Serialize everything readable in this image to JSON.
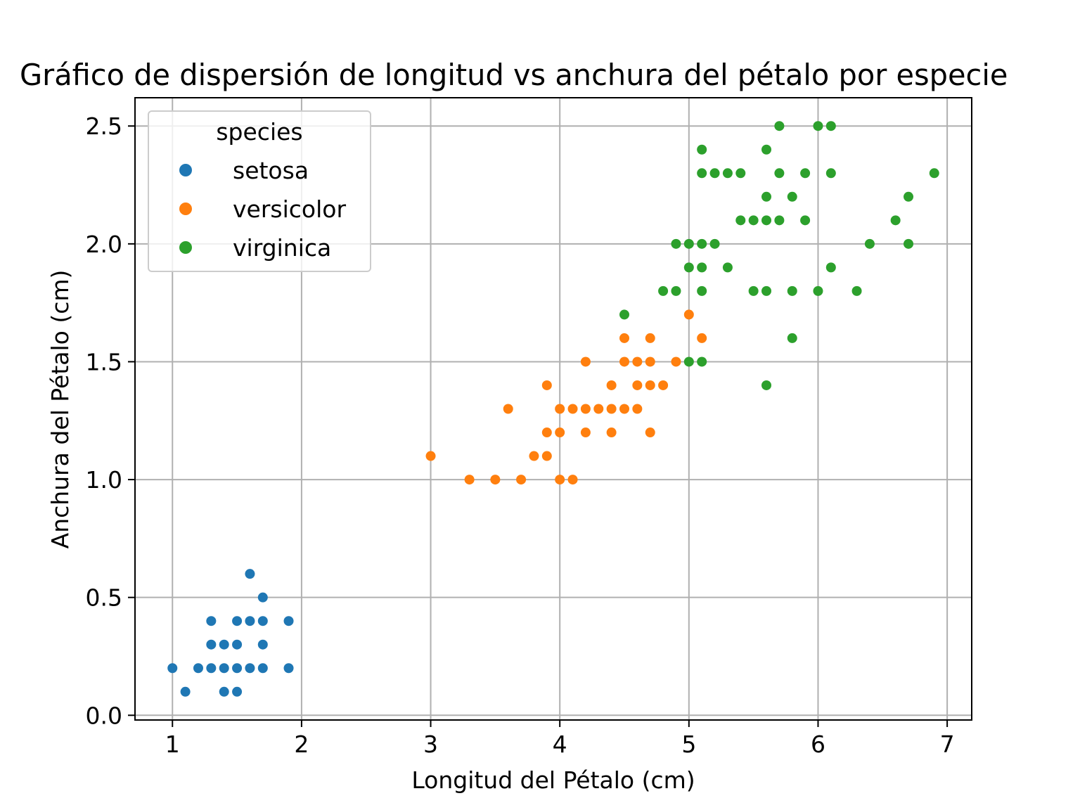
{
  "chart_data": {
    "type": "scatter",
    "title": "Gráfico de dispersión de longitud vs anchura del pétalo por especie",
    "xlabel": "Longitud del Pétalo (cm)",
    "ylabel": "Anchura del Pétalo (cm)",
    "xlim": [
      0.71,
      7.19
    ],
    "ylim": [
      -0.02,
      2.62
    ],
    "xticks": [
      1,
      2,
      3,
      4,
      5,
      6,
      7
    ],
    "xtick_labels": [
      "1",
      "2",
      "3",
      "4",
      "5",
      "6",
      "7"
    ],
    "yticks": [
      0.0,
      0.5,
      1.0,
      1.5,
      2.0,
      2.5
    ],
    "ytick_labels": [
      "0.0",
      "0.5",
      "1.0",
      "1.5",
      "2.0",
      "2.5"
    ],
    "grid": true,
    "legend": {
      "title": "species",
      "position": "top-left"
    },
    "series": [
      {
        "name": "setosa",
        "color": "#1f77b4",
        "x": [
          1.0,
          1.1,
          1.2,
          1.3,
          1.3,
          1.3,
          1.4,
          1.4,
          1.4,
          1.5,
          1.5,
          1.5,
          1.5,
          1.6,
          1.6,
          1.6,
          1.7,
          1.7,
          1.7,
          1.7,
          1.9,
          1.9
        ],
        "y": [
          0.2,
          0.1,
          0.2,
          0.2,
          0.3,
          0.4,
          0.1,
          0.2,
          0.3,
          0.1,
          0.2,
          0.3,
          0.4,
          0.2,
          0.4,
          0.6,
          0.2,
          0.3,
          0.4,
          0.5,
          0.2,
          0.4
        ]
      },
      {
        "name": "versicolor",
        "color": "#ff7f0e",
        "x": [
          3.0,
          3.3,
          3.5,
          3.6,
          3.7,
          3.8,
          3.9,
          3.9,
          3.9,
          4.0,
          4.0,
          4.0,
          4.1,
          4.1,
          4.2,
          4.2,
          4.2,
          4.3,
          4.4,
          4.4,
          4.4,
          4.5,
          4.5,
          4.5,
          4.6,
          4.6,
          4.6,
          4.7,
          4.7,
          4.7,
          4.7,
          4.8,
          4.9,
          5.0,
          5.1
        ],
        "y": [
          1.1,
          1.0,
          1.0,
          1.3,
          1.0,
          1.1,
          1.1,
          1.2,
          1.4,
          1.0,
          1.2,
          1.3,
          1.0,
          1.3,
          1.2,
          1.3,
          1.5,
          1.3,
          1.2,
          1.3,
          1.4,
          1.3,
          1.5,
          1.6,
          1.3,
          1.4,
          1.5,
          1.2,
          1.4,
          1.5,
          1.6,
          1.4,
          1.5,
          1.7,
          1.6
        ]
      },
      {
        "name": "virginica",
        "color": "#2ca02c",
        "x": [
          4.5,
          4.8,
          4.9,
          4.9,
          5.0,
          5.0,
          5.0,
          5.1,
          5.1,
          5.1,
          5.1,
          5.1,
          5.1,
          5.2,
          5.2,
          5.3,
          5.3,
          5.4,
          5.4,
          5.5,
          5.5,
          5.6,
          5.6,
          5.6,
          5.6,
          5.6,
          5.7,
          5.7,
          5.7,
          5.8,
          5.8,
          5.8,
          5.9,
          5.9,
          6.0,
          6.0,
          6.1,
          6.1,
          6.1,
          6.3,
          6.4,
          6.6,
          6.7,
          6.7,
          6.9
        ],
        "y": [
          1.7,
          1.8,
          1.8,
          2.0,
          1.5,
          1.9,
          2.0,
          1.5,
          1.8,
          1.9,
          2.0,
          2.3,
          2.4,
          2.0,
          2.3,
          1.9,
          2.3,
          2.1,
          2.3,
          1.8,
          2.1,
          1.4,
          1.8,
          2.1,
          2.2,
          2.4,
          2.1,
          2.3,
          2.5,
          1.6,
          1.8,
          2.2,
          2.1,
          2.3,
          1.8,
          2.5,
          1.9,
          2.3,
          2.5,
          1.8,
          2.0,
          2.1,
          2.0,
          2.2,
          2.3
        ]
      }
    ]
  }
}
